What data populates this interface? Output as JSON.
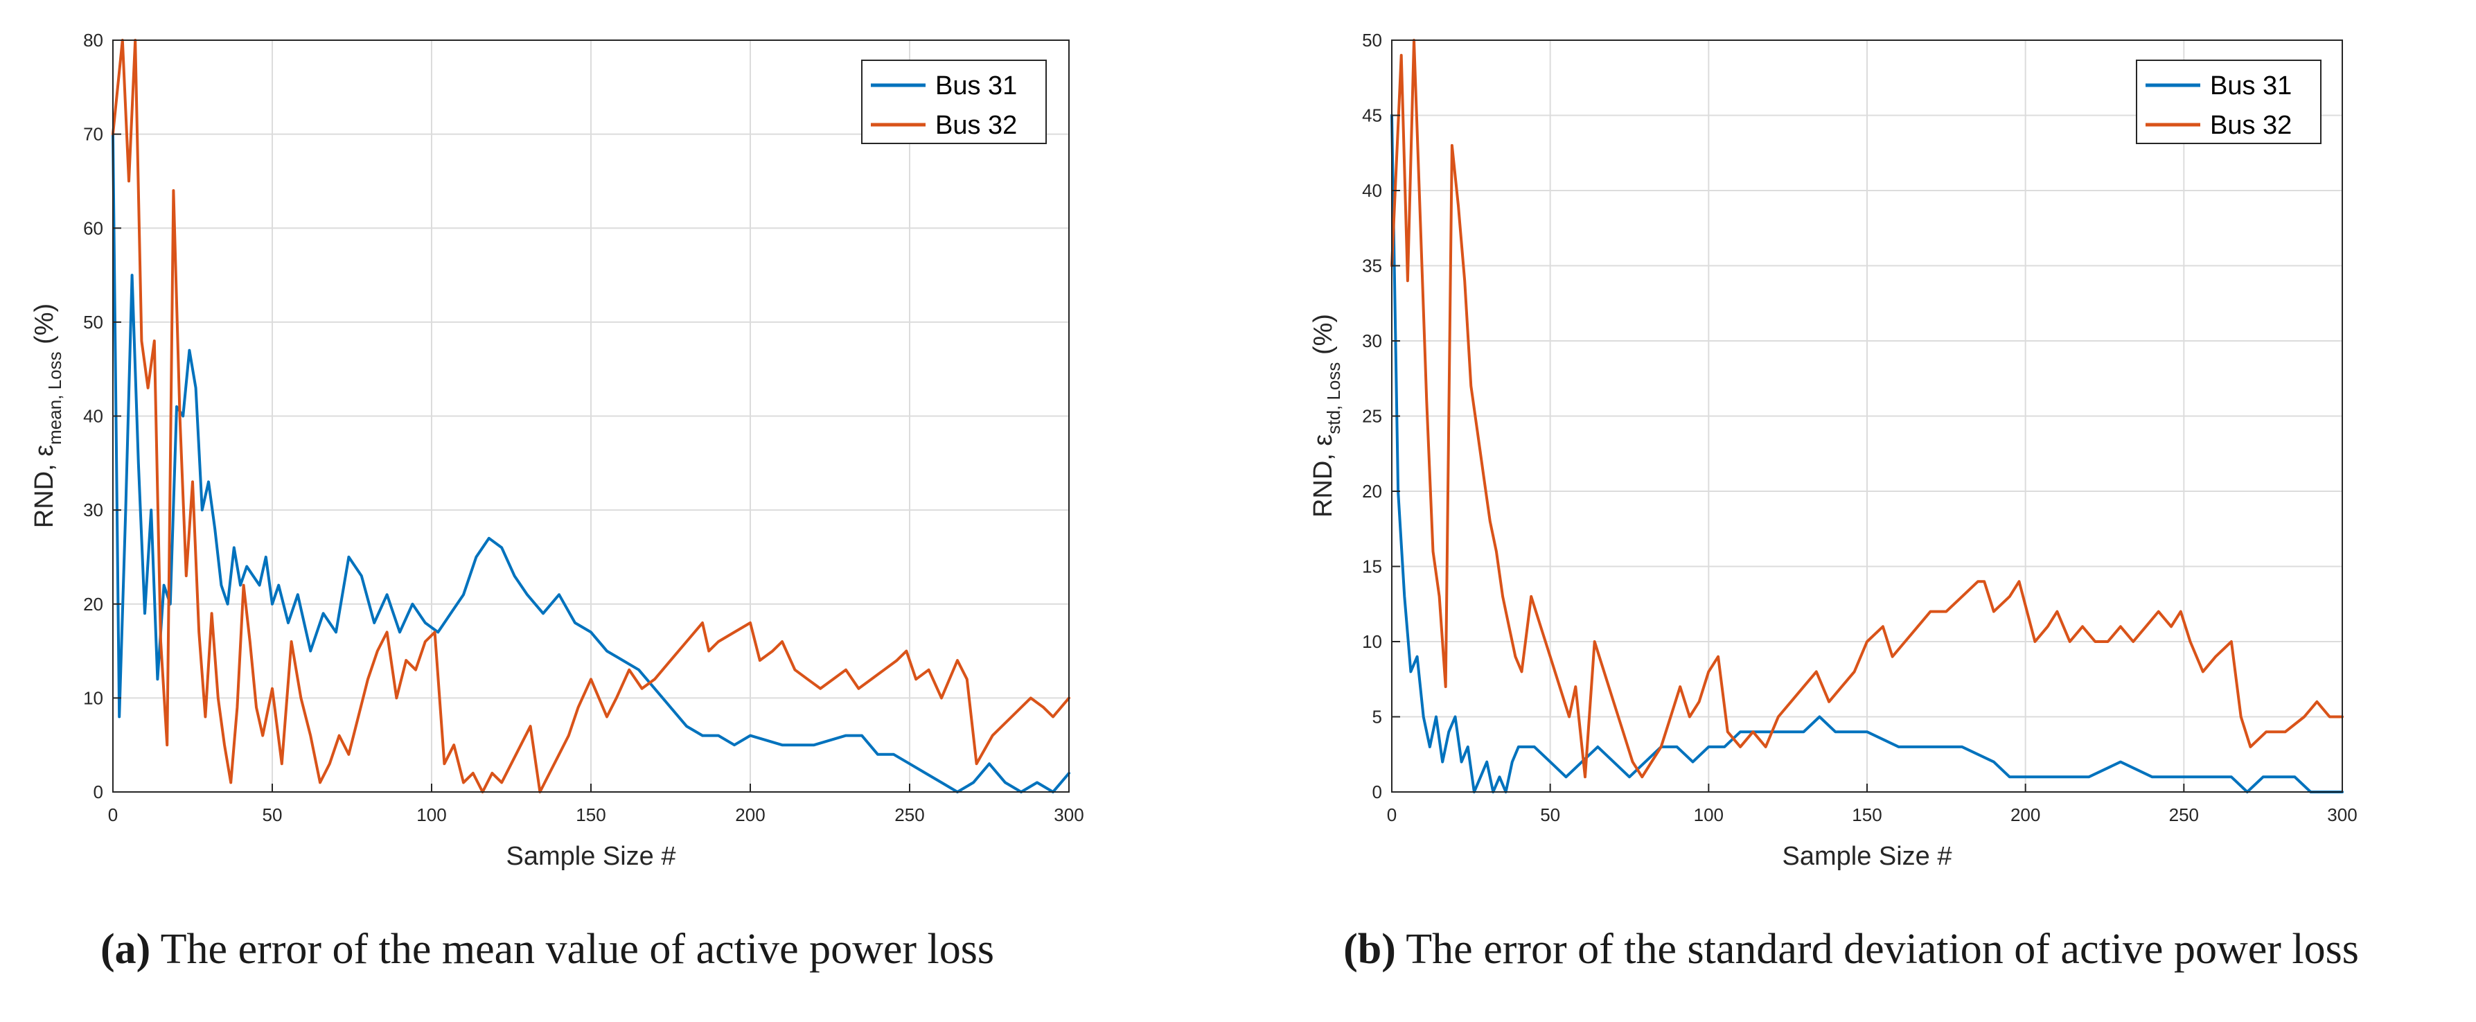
{
  "chart_data": [
    {
      "type": "line",
      "panel_label": "a",
      "caption": "The error of the mean value of active power loss",
      "xlabel": "Sample Size #",
      "ylabel_prefix": "RND, ε",
      "ylabel_sub": "mean, Loss",
      "ylabel_suffix": " (%)",
      "xlim": [
        0,
        300
      ],
      "ylim": [
        0,
        80
      ],
      "xticks": [
        0,
        50,
        100,
        150,
        200,
        250,
        300
      ],
      "yticks": [
        0,
        10,
        20,
        30,
        40,
        50,
        60,
        70,
        80
      ],
      "grid": true,
      "legend_position": "top-right",
      "series": [
        {
          "name": "Bus 31",
          "color": "#0072bd",
          "x": [
            0,
            2,
            4,
            6,
            8,
            10,
            12,
            14,
            16,
            18,
            20,
            22,
            24,
            26,
            28,
            30,
            32,
            34,
            36,
            38,
            40,
            42,
            44,
            46,
            48,
            50,
            52,
            55,
            58,
            62,
            66,
            70,
            74,
            78,
            82,
            86,
            90,
            94,
            98,
            102,
            106,
            110,
            114,
            118,
            122,
            126,
            130,
            135,
            140,
            145,
            150,
            155,
            160,
            165,
            170,
            175,
            180,
            185,
            190,
            195,
            200,
            210,
            220,
            230,
            235,
            240,
            245,
            250,
            255,
            260,
            265,
            270,
            275,
            280,
            285,
            290,
            295,
            300
          ],
          "y": [
            70,
            8,
            30,
            55,
            35,
            19,
            30,
            12,
            22,
            20,
            41,
            40,
            47,
            43,
            30,
            33,
            28,
            22,
            20,
            26,
            22,
            24,
            23,
            22,
            25,
            20,
            22,
            18,
            21,
            15,
            19,
            17,
            25,
            23,
            18,
            21,
            17,
            20,
            18,
            17,
            19,
            21,
            25,
            27,
            26,
            23,
            21,
            19,
            21,
            18,
            17,
            15,
            14,
            13,
            11,
            9,
            7,
            6,
            6,
            5,
            6,
            5,
            5,
            6,
            6,
            4,
            4,
            3,
            2,
            1,
            0,
            1,
            3,
            1,
            0,
            1,
            0,
            2
          ]
        },
        {
          "name": "Bus 32",
          "color": "#d95319",
          "x": [
            0,
            3,
            5,
            7,
            9,
            11,
            13,
            15,
            17,
            19,
            21,
            23,
            25,
            27,
            29,
            31,
            33,
            35,
            37,
            39,
            41,
            43,
            45,
            47,
            50,
            53,
            56,
            59,
            62,
            65,
            68,
            71,
            74,
            77,
            80,
            83,
            86,
            89,
            92,
            95,
            98,
            101,
            104,
            107,
            110,
            113,
            116,
            119,
            122,
            125,
            128,
            131,
            134,
            137,
            140,
            143,
            146,
            150,
            155,
            158,
            162,
            166,
            170,
            175,
            180,
            185,
            187,
            190,
            195,
            200,
            203,
            207,
            210,
            214,
            218,
            222,
            226,
            230,
            234,
            238,
            242,
            246,
            249,
            252,
            256,
            260,
            265,
            268,
            271,
            276,
            282,
            288,
            292,
            295,
            300
          ],
          "y": [
            70,
            80,
            65,
            80,
            48,
            43,
            48,
            16,
            5,
            64,
            40,
            23,
            33,
            17,
            8,
            19,
            10,
            5,
            1,
            9,
            22,
            16,
            9,
            6,
            11,
            3,
            16,
            10,
            6,
            1,
            3,
            6,
            4,
            8,
            12,
            15,
            17,
            10,
            14,
            13,
            16,
            17,
            3,
            5,
            1,
            2,
            0,
            2,
            1,
            3,
            5,
            7,
            0,
            2,
            4,
            6,
            9,
            12,
            8,
            10,
            13,
            11,
            12,
            14,
            16,
            18,
            15,
            16,
            17,
            18,
            14,
            15,
            16,
            13,
            12,
            11,
            12,
            13,
            11,
            12,
            13,
            14,
            15,
            12,
            13,
            10,
            14,
            12,
            3,
            6,
            8,
            10,
            9,
            8,
            10
          ]
        }
      ]
    },
    {
      "type": "line",
      "panel_label": "b",
      "caption": "The error of the standard deviation of active power loss",
      "xlabel": "Sample Size #",
      "ylabel_prefix": "RND, ε",
      "ylabel_sub": "std, Loss",
      "ylabel_suffix": " (%)",
      "xlim": [
        0,
        300
      ],
      "ylim": [
        0,
        50
      ],
      "xticks": [
        0,
        50,
        100,
        150,
        200,
        250,
        300
      ],
      "yticks": [
        0,
        5,
        10,
        15,
        20,
        25,
        30,
        35,
        40,
        45,
        50
      ],
      "grid": true,
      "legend_position": "top-right",
      "series": [
        {
          "name": "Bus 31",
          "color": "#0072bd",
          "x": [
            0,
            2,
            4,
            6,
            8,
            10,
            12,
            14,
            16,
            18,
            20,
            22,
            24,
            26,
            28,
            30,
            32,
            34,
            36,
            38,
            40,
            45,
            50,
            55,
            60,
            65,
            70,
            75,
            80,
            85,
            90,
            95,
            100,
            105,
            110,
            115,
            120,
            125,
            130,
            135,
            140,
            145,
            150,
            160,
            170,
            180,
            190,
            195,
            200,
            210,
            220,
            230,
            240,
            250,
            260,
            265,
            270,
            275,
            280,
            285,
            290,
            295,
            300
          ],
          "y": [
            45,
            20,
            13,
            8,
            9,
            5,
            3,
            5,
            2,
            4,
            5,
            2,
            3,
            0,
            1,
            2,
            0,
            1,
            0,
            2,
            3,
            3,
            2,
            1,
            2,
            3,
            2,
            1,
            2,
            3,
            3,
            2,
            3,
            3,
            4,
            4,
            4,
            4,
            4,
            5,
            4,
            4,
            4,
            3,
            3,
            3,
            2,
            1,
            1,
            1,
            1,
            2,
            1,
            1,
            1,
            1,
            0,
            1,
            1,
            1,
            0,
            0,
            0
          ]
        },
        {
          "name": "Bus 32",
          "color": "#d95319",
          "x": [
            0,
            3,
            5,
            7,
            9,
            11,
            13,
            15,
            17,
            19,
            21,
            23,
            25,
            27,
            29,
            31,
            33,
            35,
            37,
            39,
            41,
            44,
            47,
            50,
            53,
            56,
            58,
            61,
            64,
            67,
            70,
            73,
            76,
            79,
            82,
            85,
            88,
            91,
            94,
            97,
            100,
            103,
            106,
            110,
            114,
            118,
            122,
            126,
            130,
            134,
            138,
            142,
            146,
            150,
            155,
            158,
            162,
            166,
            170,
            175,
            180,
            185,
            187,
            190,
            195,
            198,
            203,
            207,
            210,
            214,
            218,
            222,
            226,
            230,
            234,
            238,
            242,
            246,
            249,
            252,
            256,
            260,
            265,
            268,
            271,
            276,
            282,
            288,
            292,
            296,
            300
          ],
          "y": [
            35,
            49,
            34,
            50,
            38,
            26,
            16,
            13,
            7,
            43,
            39,
            34,
            27,
            24,
            21,
            18,
            16,
            13,
            11,
            9,
            8,
            13,
            11,
            9,
            7,
            5,
            7,
            1,
            10,
            8,
            6,
            4,
            2,
            1,
            2,
            3,
            5,
            7,
            5,
            6,
            8,
            9,
            4,
            3,
            4,
            3,
            5,
            6,
            7,
            8,
            6,
            7,
            8,
            10,
            11,
            9,
            10,
            11,
            12,
            12,
            13,
            14,
            14,
            12,
            13,
            14,
            10,
            11,
            12,
            10,
            11,
            10,
            10,
            11,
            10,
            11,
            12,
            11,
            12,
            10,
            8,
            9,
            10,
            5,
            3,
            4,
            4,
            5,
            6,
            5,
            5
          ]
        }
      ]
    }
  ]
}
